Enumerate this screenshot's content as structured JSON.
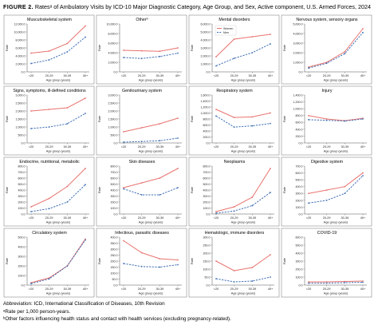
{
  "figure": {
    "label": "FIGURE 2.",
    "title": "Ratesᵃ of Ambulatory Visits by ICD-10 Major Diagnostic Category, Age Group, and Sex, Active component, U.S. Armed Forces, 2024"
  },
  "legend": {
    "women": "Women",
    "men": "Men"
  },
  "colors": {
    "women": "#e8736f",
    "men": "#3f6fb5",
    "axis": "#555555",
    "frame": "#8a8a8a"
  },
  "footnotes": [
    "Abbreviation: ICD, International Classification of Diseases, 10th Revision",
    "ᵃRate per 1,000 person-years.",
    "ᵇOther factors influencing health status and contact with health services (excluding pregnancy-related)."
  ],
  "chart_data": [
    {
      "type": "line",
      "title": "Musculoskeletal system",
      "ylabel": "Rate",
      "xlabel": "Age group (years)",
      "categories": [
        "<20",
        "20-29",
        "30-39",
        "40+"
      ],
      "ylim": [
        0,
        12000
      ],
      "yticks": [
        "0.0",
        "2,000.0",
        "4,000.0",
        "6,000.0",
        "8,000.0",
        "10,000.0",
        "12,000.0"
      ],
      "series": [
        {
          "name": "Women",
          "values": [
            4700,
            5200,
            7100,
            11500
          ]
        },
        {
          "name": "Men",
          "values": [
            2100,
            3000,
            5000,
            8700
          ]
        }
      ]
    },
    {
      "type": "line",
      "title": "Otherᵇ",
      "ylabel": "Rate",
      "xlabel": "Age group (years)",
      "categories": [
        "<20",
        "20-29",
        "30-39",
        "40+"
      ],
      "ylim": [
        0,
        10000
      ],
      "yticks": [
        "0.0",
        "2,000.0",
        "4,000.0",
        "6,000.0",
        "8,000.0",
        "10,000.0"
      ],
      "series": [
        {
          "name": "Women",
          "values": [
            4500,
            4400,
            4300,
            5000
          ]
        },
        {
          "name": "Men",
          "values": [
            3000,
            2800,
            3200,
            3900
          ]
        }
      ]
    },
    {
      "type": "line",
      "title": "Mental disorders",
      "ylabel": "Rate",
      "xlabel": "Age group (years)",
      "categories": [
        "<20",
        "20-29",
        "30-39",
        "40+"
      ],
      "ylim": [
        0,
        6000
      ],
      "yticks": [
        "0.0",
        "1,000.0",
        "2,000.0",
        "3,000.0",
        "4,000.0",
        "5,000.0",
        "6,000.0"
      ],
      "series": [
        {
          "name": "Women",
          "values": [
            1900,
            4100,
            4400,
            4700
          ]
        },
        {
          "name": "Men",
          "values": [
            750,
            1700,
            2400,
            3500
          ]
        }
      ],
      "legend": "top-left"
    },
    {
      "type": "line",
      "title": "Nervous system, sensory organs",
      "ylabel": "Rate",
      "xlabel": "Age group (years)",
      "categories": [
        "<20",
        "20-29",
        "30-39",
        "40+"
      ],
      "ylim": [
        0,
        5000
      ],
      "yticks": [
        "0.0",
        "1,000.0",
        "2,000.0",
        "3,000.0",
        "4,000.0",
        "5,000.0"
      ],
      "series": [
        {
          "name": "Women",
          "values": [
            500,
            1000,
            2100,
            4500
          ]
        },
        {
          "name": "Men",
          "values": [
            400,
            900,
            1900,
            4100
          ]
        }
      ]
    },
    {
      "type": "line",
      "title": "Signs, symptoms, ill-defined conditions",
      "ylabel": "Rate",
      "xlabel": "Age group (years)",
      "categories": [
        "<20",
        "20-29",
        "30-39",
        "40+"
      ],
      "ylim": [
        0,
        3000
      ],
      "yticks": [
        "0.0",
        "500.0",
        "1,000.0",
        "1,500.0",
        "2,000.0",
        "2,500.0",
        "3,000.0"
      ],
      "series": [
        {
          "name": "Women",
          "values": [
            2000,
            2100,
            2200,
            2800
          ]
        },
        {
          "name": "Men",
          "values": [
            900,
            1000,
            1200,
            1850
          ]
        }
      ]
    },
    {
      "type": "line",
      "title": "Genitourinary system",
      "ylabel": "Rate",
      "xlabel": "Age group (years)",
      "categories": [
        "<20",
        "20-29",
        "30-39",
        "40+"
      ],
      "ylim": [
        0,
        3000
      ],
      "yticks": [
        "0.0",
        "500.0",
        "1,000.0",
        "1,500.0",
        "2,000.0",
        "2,500.0",
        "3,000.0"
      ],
      "series": [
        {
          "name": "Women",
          "values": [
            700,
            950,
            1200,
            1550
          ]
        },
        {
          "name": "Men",
          "values": [
            50,
            90,
            140,
            300
          ]
        }
      ]
    },
    {
      "type": "line",
      "title": "Respiratory system",
      "ylabel": "Rate",
      "xlabel": "Age group (years)",
      "categories": [
        "<20",
        "20-29",
        "30-39",
        "40+"
      ],
      "ylim": [
        0,
        1600
      ],
      "yticks": [
        "0.0",
        "200.0",
        "400.0",
        "600.0",
        "800.0",
        "1,000.0",
        "1,200.0",
        "1,400.0",
        "1,600.0"
      ],
      "series": [
        {
          "name": "Women",
          "values": [
            1120,
            850,
            870,
            1000
          ]
        },
        {
          "name": "Men",
          "values": [
            900,
            530,
            570,
            650
          ]
        }
      ]
    },
    {
      "type": "line",
      "title": "Injury",
      "ylabel": "Rate",
      "xlabel": "Age group (years)",
      "categories": [
        "<20",
        "20-29",
        "30-39",
        "40+"
      ],
      "ylim": [
        0,
        1400
      ],
      "yticks": [
        "0.0",
        "200.0",
        "400.0",
        "600.0",
        "800.0",
        "1,000.0",
        "1,200.0",
        "1,400.0"
      ],
      "series": [
        {
          "name": "Women",
          "values": [
            800,
            700,
            650,
            720
          ]
        },
        {
          "name": "Men",
          "values": [
            680,
            660,
            640,
            700
          ]
        }
      ]
    },
    {
      "type": "line",
      "title": "Endocrine, nutritional, metabolic",
      "ylabel": "Rate",
      "xlabel": "Age group (years)",
      "categories": [
        "<20",
        "20-29",
        "30-39",
        "40+"
      ],
      "ylim": [
        0,
        800
      ],
      "yticks": [
        "0.0",
        "100.0",
        "200.0",
        "300.0",
        "400.0",
        "500.0",
        "600.0",
        "700.0",
        "800.0"
      ],
      "series": [
        {
          "name": "Women",
          "values": [
            120,
            260,
            460,
            760
          ]
        },
        {
          "name": "Men",
          "values": [
            40,
            90,
            200,
            490
          ]
        }
      ]
    },
    {
      "type": "line",
      "title": "Skin diseases",
      "ylabel": "Rate",
      "xlabel": "Age group (years)",
      "categories": [
        "<20",
        "20-29",
        "30-39",
        "40+"
      ],
      "ylim": [
        0,
        800
      ],
      "yticks": [
        "0.0",
        "100.0",
        "200.0",
        "300.0",
        "400.0",
        "500.0",
        "600.0",
        "700.0",
        "800.0"
      ],
      "series": [
        {
          "name": "Women",
          "values": [
            440,
            520,
            600,
            760
          ]
        },
        {
          "name": "Men",
          "values": [
            420,
            320,
            320,
            440
          ]
        }
      ]
    },
    {
      "type": "line",
      "title": "Neoplasms",
      "ylabel": "Rate",
      "xlabel": "Age group (years)",
      "categories": [
        "<20",
        "20-29",
        "30-39",
        "40+"
      ],
      "ylim": [
        0,
        800
      ],
      "yticks": [
        "0.0",
        "100.0",
        "200.0",
        "300.0",
        "400.0",
        "500.0",
        "600.0",
        "700.0",
        "800.0"
      ],
      "series": [
        {
          "name": "Women",
          "values": [
            40,
            120,
            280,
            760
          ]
        },
        {
          "name": "Men",
          "values": [
            15,
            50,
            140,
            360
          ]
        }
      ]
    },
    {
      "type": "line",
      "title": "Digestive system",
      "ylabel": "Rate",
      "xlabel": "Age group (years)",
      "categories": [
        "<20",
        "20-29",
        "30-39",
        "40+"
      ],
      "ylim": [
        0,
        700
      ],
      "yticks": [
        "0.0",
        "100.0",
        "200.0",
        "300.0",
        "400.0",
        "500.0",
        "600.0",
        "700.0"
      ],
      "series": [
        {
          "name": "Women",
          "values": [
            300,
            350,
            400,
            600
          ]
        },
        {
          "name": "Men",
          "values": [
            160,
            200,
            300,
            560
          ]
        }
      ]
    },
    {
      "type": "line",
      "title": "Circulatory system",
      "ylabel": "Rate",
      "xlabel": "Age group (years)",
      "categories": [
        "<20",
        "20-29",
        "30-39",
        "40+"
      ],
      "ylim": [
        0,
        500
      ],
      "yticks": [
        "0.0",
        "100.0",
        "200.0",
        "300.0",
        "400.0",
        "500.0"
      ],
      "series": [
        {
          "name": "Women",
          "values": [
            25,
            75,
            200,
            480
          ]
        },
        {
          "name": "Men",
          "values": [
            15,
            65,
            200,
            470
          ]
        }
      ]
    },
    {
      "type": "line",
      "title": "Infectious, parasitic diseases",
      "ylabel": "Rate",
      "xlabel": "Age group (years)",
      "categories": [
        "<20",
        "20-29",
        "30-39",
        "40+"
      ],
      "ylim": [
        0,
        400
      ],
      "yticks": [
        "0.0",
        "50.0",
        "100.0",
        "150.0",
        "200.0",
        "250.0",
        "300.0",
        "350.0",
        "400.0"
      ],
      "series": [
        {
          "name": "Women",
          "values": [
            370,
            270,
            220,
            210
          ]
        },
        {
          "name": "Men",
          "values": [
            180,
            155,
            150,
            170
          ]
        }
      ]
    },
    {
      "type": "line",
      "title": "Hematologic, immune disorders",
      "ylabel": "Rate",
      "xlabel": "Age group (years)",
      "categories": [
        "<20",
        "20-29",
        "30-39",
        "40+"
      ],
      "ylim": [
        0,
        300
      ],
      "yticks": [
        "0.0",
        "50.0",
        "100.0",
        "150.0",
        "200.0",
        "250.0",
        "300.0"
      ],
      "series": [
        {
          "name": "Women",
          "values": [
            150,
            90,
            110,
            190
          ]
        },
        {
          "name": "Men",
          "values": [
            40,
            20,
            25,
            50
          ]
        }
      ]
    },
    {
      "type": "line",
      "title": "COVID-19",
      "ylabel": "Rate",
      "xlabel": "Age group (years)",
      "categories": [
        "<20",
        "20-29",
        "30-39",
        "40+"
      ],
      "ylim": [
        0,
        600
      ],
      "yticks": [
        "0.0",
        "100.0",
        "200.0",
        "300.0",
        "400.0",
        "500.0",
        "600.0"
      ],
      "series": [
        {
          "name": "Women",
          "values": [
            40,
            40,
            45,
            50
          ]
        },
        {
          "name": "Men",
          "values": [
            25,
            25,
            30,
            35
          ]
        }
      ]
    }
  ]
}
